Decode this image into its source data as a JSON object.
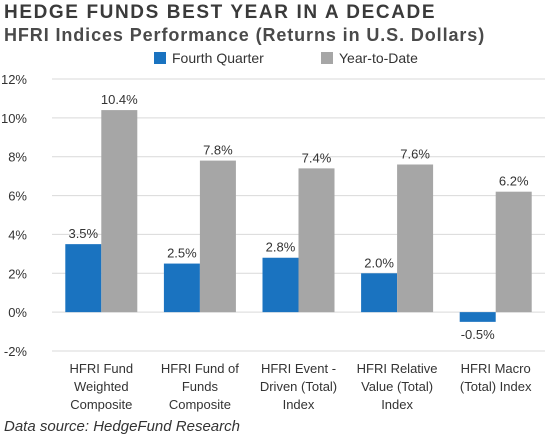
{
  "header": {
    "title": "HEDGE FUNDS BEST YEAR IN A DECADE",
    "subtitle": "HFRI Indices Performance (Returns in U.S. Dollars)"
  },
  "footer": {
    "source": "Data source: HedgeFund Research"
  },
  "colors": {
    "fourth_quarter": "#1a73c0",
    "year_to_date": "#a6a6a6",
    "gridline": "#d9d9d9",
    "text": "#333333"
  },
  "chart_data": {
    "type": "bar",
    "categories": [
      [
        "HFRI Fund",
        "Weighted",
        "Composite"
      ],
      [
        "HFRI Fund of",
        "Funds",
        "Composite"
      ],
      [
        "HFRI Event -",
        "Driven (Total)",
        "Index"
      ],
      [
        "HFRI Relative",
        "Value (Total)",
        "Index"
      ],
      [
        "HFRI Macro",
        "(Total) Index"
      ]
    ],
    "series": [
      {
        "name": "Fourth Quarter",
        "values": [
          3.5,
          2.5,
          2.8,
          2.0,
          -0.5
        ],
        "labels": [
          "3.5%",
          "2.5%",
          "2.8%",
          "2.0%",
          "-0.5%"
        ]
      },
      {
        "name": "Year-to-Date",
        "values": [
          10.4,
          7.8,
          7.4,
          7.6,
          6.2
        ],
        "labels": [
          "10.4%",
          "7.8%",
          "7.4%",
          "7.6%",
          "6.2%"
        ]
      }
    ],
    "ylim": [
      -2,
      12
    ],
    "yticks": [
      -2,
      0,
      2,
      4,
      6,
      8,
      10,
      12
    ],
    "ytick_labels": [
      "-2%",
      "0%",
      "2%",
      "4%",
      "6%",
      "8%",
      "10%",
      "12%"
    ],
    "grid": true,
    "legend_position": "top"
  }
}
